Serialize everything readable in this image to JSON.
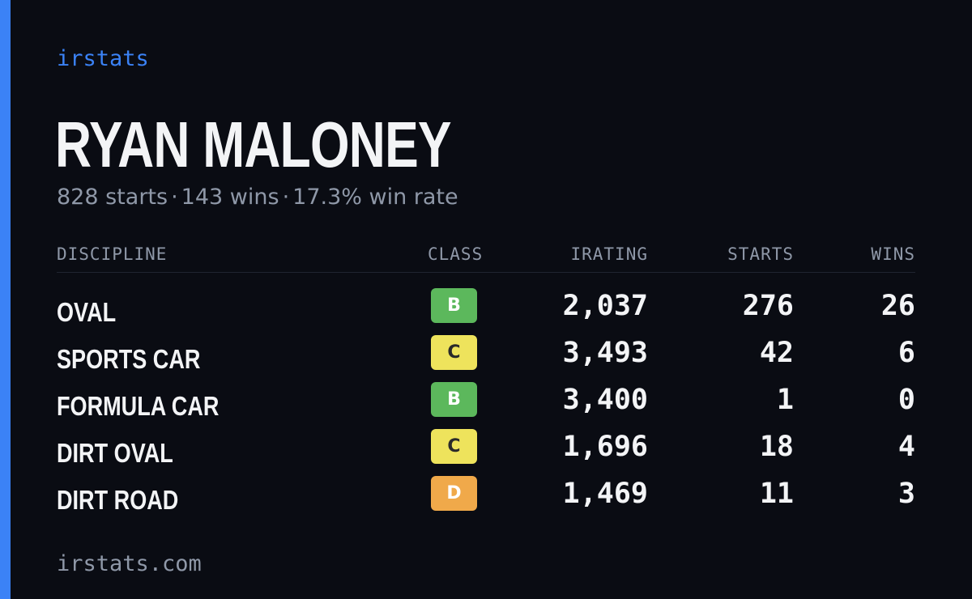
{
  "brand": "irstats",
  "driver": {
    "name": "RYAN MALONEY",
    "starts_text": "828 starts",
    "wins_text": "143 wins",
    "win_rate_text": "17.3% win rate",
    "separator": "·"
  },
  "table": {
    "headers": {
      "discipline": "DISCIPLINE",
      "class": "CLASS",
      "irating": "IRATING",
      "starts": "STARTS",
      "wins": "WINS"
    },
    "rows": [
      {
        "discipline": "OVAL",
        "class": "B",
        "irating": "2,037",
        "starts": "276",
        "wins": "26"
      },
      {
        "discipline": "SPORTS CAR",
        "class": "C",
        "irating": "3,493",
        "starts": "42",
        "wins": "6"
      },
      {
        "discipline": "FORMULA CAR",
        "class": "B",
        "irating": "3,400",
        "starts": "1",
        "wins": "0"
      },
      {
        "discipline": "DIRT OVAL",
        "class": "C",
        "irating": "1,696",
        "starts": "18",
        "wins": "4"
      },
      {
        "discipline": "DIRT ROAD",
        "class": "D",
        "irating": "1,469",
        "starts": "11",
        "wins": "3"
      }
    ]
  },
  "footer": "irstats.com",
  "colors": {
    "background": "#0a0c13",
    "accent": "#3b82f6",
    "class_b": "#5cb85c",
    "class_c": "#eee35c",
    "class_d": "#f0a94a"
  }
}
